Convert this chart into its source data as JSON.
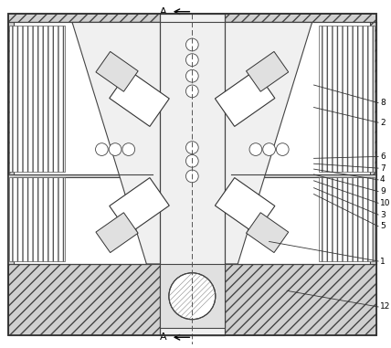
{
  "bg_color": "#ffffff",
  "fig_width": 4.28,
  "fig_height": 3.81,
  "dpi": 100,
  "outer_hatch": "///",
  "spring_hatch": "|||",
  "center_hatch": "///",
  "ec": "#555555",
  "lc": "#444444"
}
